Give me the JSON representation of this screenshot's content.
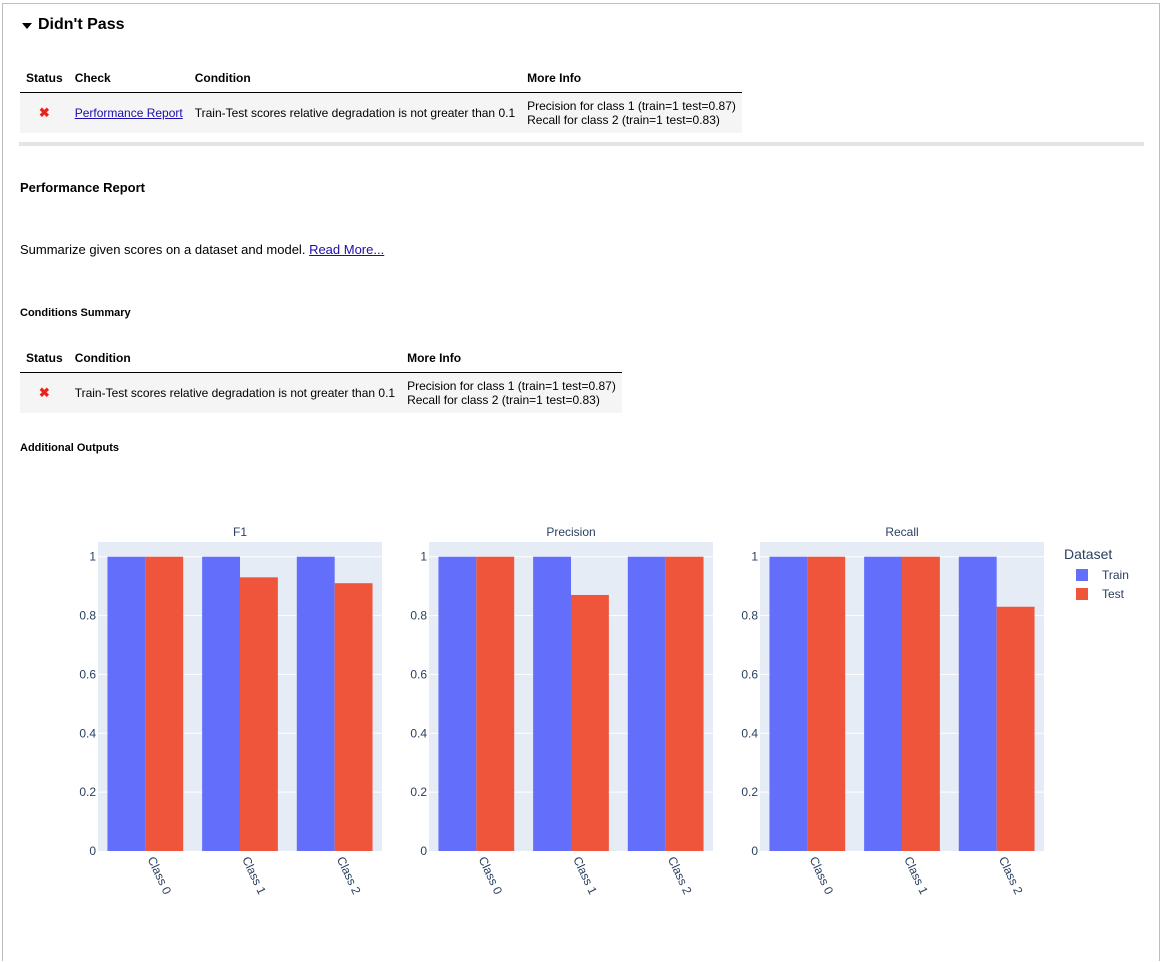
{
  "section": {
    "title": "Didn't Pass"
  },
  "top_table": {
    "headers": [
      "Status",
      "Check",
      "Condition",
      "More Info"
    ],
    "row": {
      "status": "✖",
      "check": "Performance Report",
      "condition": "Train-Test scores relative degradation is not greater than 0.1",
      "more_info_1": "Precision for class 1 (train=1 test=0.87)",
      "more_info_2": "Recall for class 2 (train=1 test=0.83)"
    }
  },
  "report": {
    "title": "Performance Report",
    "description": "Summarize given scores on a dataset and model.",
    "read_more": "Read More...",
    "conditions_summary_title": "Conditions Summary",
    "additional_outputs_title": "Additional Outputs"
  },
  "summary_table": {
    "headers": [
      "Status",
      "Condition",
      "More Info"
    ],
    "row": {
      "status": "✖",
      "condition": "Train-Test scores relative degradation is not greater than 0.1",
      "more_info_1": "Precision for class 1 (train=1 test=0.87)",
      "more_info_2": "Recall for class 2 (train=1 test=0.83)"
    }
  },
  "colors": {
    "train": "#636efa",
    "test": "#ef553b",
    "plot_bg": "#e5ecf6"
  },
  "chart_data": [
    {
      "type": "bar",
      "title": "F1",
      "categories": [
        "Class 0",
        "Class 1",
        "Class 2"
      ],
      "series": [
        {
          "name": "Train",
          "values": [
            1,
            1,
            1
          ]
        },
        {
          "name": "Test",
          "values": [
            1,
            0.93,
            0.91
          ]
        }
      ],
      "ylim": [
        0,
        1.05
      ],
      "yticks": [
        "0",
        "0.2",
        "0.4",
        "0.6",
        "0.8",
        "1"
      ],
      "legend_title": "Dataset",
      "legend_position": "right"
    },
    {
      "type": "bar",
      "title": "Precision",
      "categories": [
        "Class 0",
        "Class 1",
        "Class 2"
      ],
      "series": [
        {
          "name": "Train",
          "values": [
            1,
            1,
            1
          ]
        },
        {
          "name": "Test",
          "values": [
            1,
            0.87,
            1
          ]
        }
      ],
      "ylim": [
        0,
        1.05
      ],
      "yticks": [
        "0",
        "0.2",
        "0.4",
        "0.6",
        "0.8",
        "1"
      ]
    },
    {
      "type": "bar",
      "title": "Recall",
      "categories": [
        "Class 0",
        "Class 1",
        "Class 2"
      ],
      "series": [
        {
          "name": "Train",
          "values": [
            1,
            1,
            1
          ]
        },
        {
          "name": "Test",
          "values": [
            1,
            1,
            0.83
          ]
        }
      ],
      "ylim": [
        0,
        1.05
      ],
      "yticks": [
        "0",
        "0.2",
        "0.4",
        "0.6",
        "0.8",
        "1"
      ]
    }
  ],
  "legend": {
    "title": "Dataset",
    "items": [
      "Train",
      "Test"
    ]
  }
}
